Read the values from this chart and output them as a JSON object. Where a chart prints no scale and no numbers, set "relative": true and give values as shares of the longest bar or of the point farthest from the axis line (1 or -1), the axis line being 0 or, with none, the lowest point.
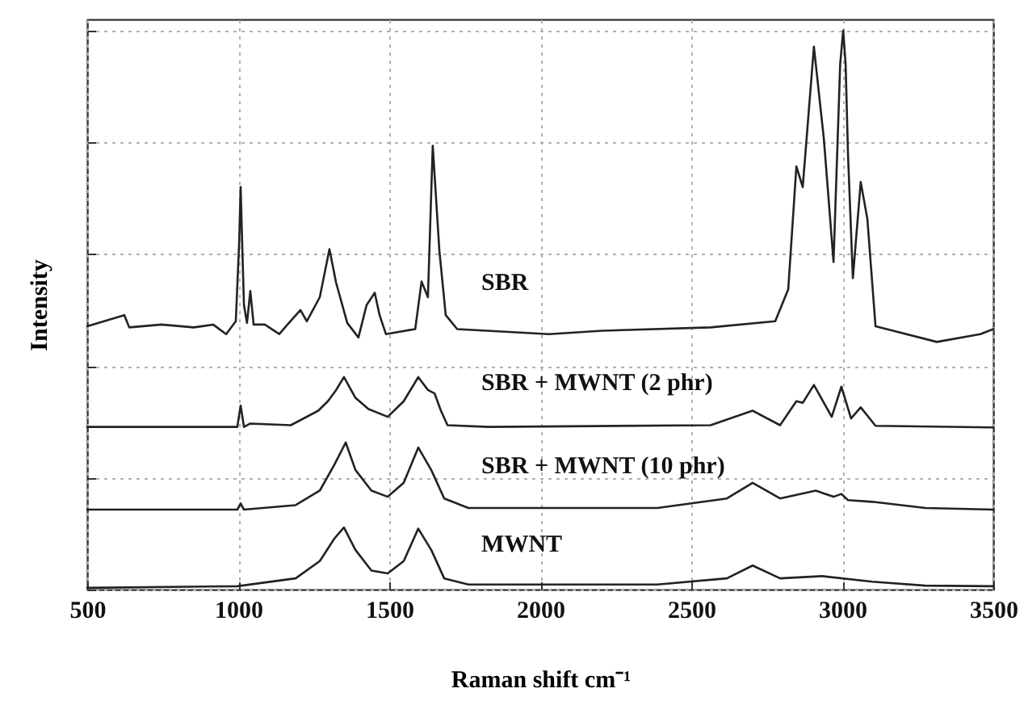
{
  "chart_data": {
    "type": "line",
    "relative": true,
    "xlabel": "Raman shift cm⁻¹",
    "ylabel": "Intensity",
    "xlim": [
      500,
      3500
    ],
    "xticks": [
      500,
      1000,
      1500,
      2000,
      2500,
      3000,
      3500
    ],
    "grid": true,
    "line_style": "solid",
    "series": [
      {
        "name": "SBR",
        "color": "#222222",
        "x": [
          500,
          623,
          639,
          746,
          853,
          917,
          960,
          992,
          1003,
          1008,
          1013,
          1019,
          1029,
          1040,
          1051,
          1088,
          1136,
          1163,
          1206,
          1227,
          1270,
          1302,
          1324,
          1361,
          1398,
          1425,
          1452,
          1468,
          1489,
          1586,
          1607,
          1628,
          1644,
          1666,
          1687,
          1725,
          2029,
          2206,
          2564,
          2778,
          2821,
          2848,
          2869,
          2906,
          2939,
          2971,
          2993,
          3003,
          3011,
          3019,
          3035,
          3061,
          3083,
          3110,
          3168,
          3313,
          3457,
          3500
        ],
        "values": [
          0.471,
          0.491,
          0.469,
          0.474,
          0.469,
          0.474,
          0.457,
          0.48,
          0.62,
          0.72,
          0.62,
          0.509,
          0.477,
          0.534,
          0.474,
          0.474,
          0.457,
          0.474,
          0.5,
          0.48,
          0.523,
          0.609,
          0.549,
          0.477,
          0.451,
          0.509,
          0.531,
          0.491,
          0.457,
          0.466,
          0.551,
          0.523,
          0.794,
          0.606,
          0.491,
          0.466,
          0.457,
          0.463,
          0.469,
          0.48,
          0.537,
          0.757,
          0.72,
          0.971,
          0.806,
          0.586,
          0.94,
          1.0,
          0.94,
          0.777,
          0.557,
          0.729,
          0.663,
          0.471,
          0.463,
          0.443,
          0.457,
          0.466
        ]
      },
      {
        "name": "SBR + MWNT (2 phr)",
        "color": "#222222",
        "x": [
          500,
          997,
          1003,
          1008,
          1013,
          1019,
          1040,
          1174,
          1265,
          1297,
          1324,
          1350,
          1388,
          1431,
          1495,
          1548,
          1596,
          1628,
          1650,
          1671,
          1693,
          1829,
          2564,
          2703,
          2794,
          2848,
          2869,
          2906,
          2965,
          2997,
          3029,
          3061,
          3110,
          3500
        ],
        "values": [
          0.291,
          0.291,
          0.312,
          0.329,
          0.312,
          0.291,
          0.297,
          0.294,
          0.32,
          0.337,
          0.357,
          0.38,
          0.343,
          0.323,
          0.309,
          0.337,
          0.38,
          0.357,
          0.351,
          0.32,
          0.294,
          0.291,
          0.294,
          0.32,
          0.294,
          0.337,
          0.334,
          0.366,
          0.309,
          0.363,
          0.306,
          0.326,
          0.293,
          0.29
        ]
      },
      {
        "name": "SBR + MWNT (10 phr)",
        "color": "#222222",
        "x": [
          500,
          997,
          1008,
          1019,
          1190,
          1270,
          1318,
          1356,
          1388,
          1441,
          1495,
          1548,
          1596,
          1639,
          1682,
          1762,
          2388,
          2618,
          2703,
          2794,
          2912,
          2971,
          2997,
          3019,
          3099,
          3275,
          3500
        ],
        "values": [
          0.143,
          0.143,
          0.154,
          0.143,
          0.151,
          0.177,
          0.223,
          0.263,
          0.214,
          0.177,
          0.166,
          0.191,
          0.254,
          0.214,
          0.163,
          0.146,
          0.146,
          0.163,
          0.191,
          0.163,
          0.177,
          0.166,
          0.171,
          0.16,
          0.157,
          0.146,
          0.143
        ]
      },
      {
        "name": "MWNT",
        "color": "#222222",
        "x": [
          500,
          997,
          1190,
          1270,
          1318,
          1350,
          1388,
          1441,
          1495,
          1548,
          1596,
          1639,
          1682,
          1762,
          2388,
          2618,
          2703,
          2794,
          2933,
          3099,
          3275,
          3500
        ],
        "values": [
          0.003,
          0.006,
          0.02,
          0.051,
          0.091,
          0.111,
          0.071,
          0.034,
          0.029,
          0.051,
          0.109,
          0.071,
          0.02,
          0.009,
          0.009,
          0.02,
          0.043,
          0.02,
          0.024,
          0.014,
          0.007,
          0.006
        ]
      }
    ]
  }
}
